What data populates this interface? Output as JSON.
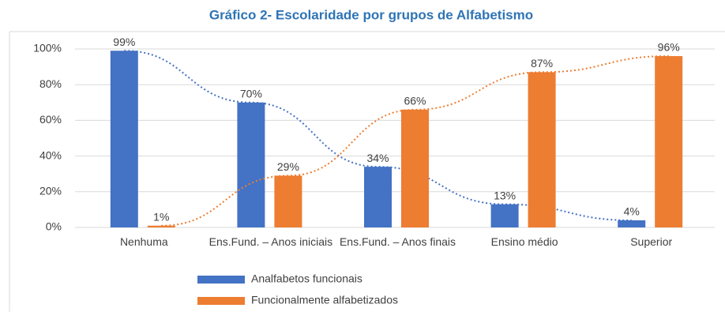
{
  "chart_data": {
    "type": "bar",
    "title": "Gráfico 2- Escolaridade por grupos de Alfabetismo",
    "categories": [
      "Nenhuma",
      "Ens.Fund. – Anos iniciais",
      "Ens.Fund. – Anos finais",
      "Ensino médio",
      "Superior"
    ],
    "series": [
      {
        "name": "Analfabetos funcionais",
        "color": "#4472c4",
        "values": [
          99,
          70,
          34,
          13,
          4
        ],
        "value_labels": [
          "99%",
          "70%",
          "34%",
          "13%",
          "4%"
        ]
      },
      {
        "name": "Funcionalmente alfabetizados",
        "color": "#ed7d31",
        "values": [
          1,
          29,
          66,
          87,
          96
        ],
        "value_labels": [
          "1%",
          "29%",
          "66%",
          "87%",
          "96%"
        ]
      }
    ],
    "ylim": [
      0,
      100
    ],
    "yticks": [
      {
        "value": 0,
        "label": "0%"
      },
      {
        "value": 20,
        "label": "20%"
      },
      {
        "value": 40,
        "label": "40%"
      },
      {
        "value": 60,
        "label": "60%"
      },
      {
        "value": 80,
        "label": "80%"
      },
      {
        "value": 100,
        "label": "100%"
      }
    ],
    "grid": true,
    "legend": "bottom"
  }
}
